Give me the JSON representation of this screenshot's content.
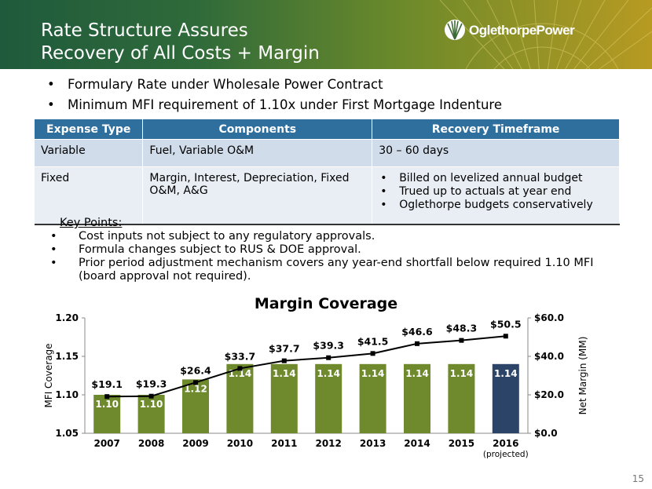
{
  "slide": {
    "title_line1": "Rate Structure Assures",
    "title_line2": "Recovery of All Costs + Margin",
    "logo_text": "OglethorpePower",
    "page_number": "15"
  },
  "bullets": [
    "Formulary Rate under Wholesale Power Contract",
    "Minimum MFI requirement of 1.10x under First Mortgage Indenture"
  ],
  "table": {
    "headers": [
      "Expense Type",
      "Components",
      "Recovery Timeframe"
    ],
    "rows": [
      {
        "type": "Variable",
        "components": "Fuel, Variable O&M",
        "recovery": "30 – 60 days"
      },
      {
        "type": "Fixed",
        "components": "Margin, Interest, Depreciation, Fixed O&M, A&G",
        "recovery_items": [
          "Billed on levelized annual budget",
          "Trued up to actuals at year end",
          "Oglethorpe budgets conservatively"
        ]
      }
    ]
  },
  "key_points": {
    "title": "Key Points:",
    "items": [
      "Cost inputs not subject to any regulatory approvals.",
      "Formula changes subject to RUS & DOE approval.",
      "Prior period adjustment mechanism covers any year-end shortfall below required 1.10 MFI (board approval not required)."
    ]
  },
  "chart_data": {
    "type": "bar",
    "title": "Margin Coverage",
    "categories": [
      "2007",
      "2008",
      "2009",
      "2010",
      "2011",
      "2012",
      "2013",
      "2014",
      "2015",
      "2016"
    ],
    "category_sublabels": [
      "",
      "",
      "",
      "",
      "",
      "",
      "",
      "",
      "",
      "(projected)"
    ],
    "ylabel": "MFI Coverage",
    "y2label": "Net Margin (MM)",
    "ylim": [
      1.05,
      1.2
    ],
    "yticks": [
      "1.05",
      "1.10",
      "1.15",
      "1.20"
    ],
    "y2lim": [
      0,
      60
    ],
    "y2ticks": [
      "$0.0",
      "$20.0",
      "$40.0",
      "$60.0"
    ],
    "series": [
      {
        "type": "bar",
        "axis": "left",
        "values": [
          1.1,
          1.1,
          1.12,
          1.14,
          1.14,
          1.14,
          1.14,
          1.14,
          1.14,
          1.14
        ],
        "labels": [
          "1.10",
          "1.10",
          "1.12",
          "1.14",
          "1.14",
          "1.14",
          "1.14",
          "1.14",
          "1.14",
          "1.14"
        ]
      },
      {
        "type": "line",
        "axis": "right",
        "values": [
          19.1,
          19.3,
          26.4,
          33.7,
          37.7,
          39.3,
          41.5,
          46.6,
          48.3,
          50.5
        ],
        "labels": [
          "$19.1",
          "$19.3",
          "$26.4",
          "$33.7",
          "$37.7",
          "$39.3",
          "$41.5",
          "$46.6",
          "$48.3",
          "$50.5"
        ]
      }
    ],
    "colors": {
      "bar": "#6e8a2c",
      "bar_projected": "#2b4468",
      "line": "#000000"
    },
    "grid": false,
    "legend": "none"
  }
}
